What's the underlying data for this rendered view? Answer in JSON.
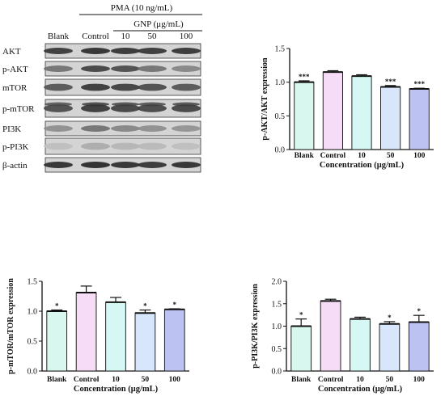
{
  "blot": {
    "treatment_label": "PMA (10 ng/mL)",
    "gnp_label": "GNP (μg/mL)",
    "lane_labels": [
      "Blank",
      "Control",
      "10",
      "50",
      "100"
    ],
    "proteins": [
      "AKT",
      "p-AKT",
      "mTOR",
      "p-mTOR",
      "PI3K",
      "p-PI3K",
      "β-actin"
    ],
    "band_intensity": [
      [
        0.85,
        0.9,
        0.88,
        0.86,
        0.87
      ],
      [
        0.55,
        0.8,
        0.75,
        0.55,
        0.45
      ],
      [
        0.7,
        0.85,
        0.82,
        0.75,
        0.7
      ],
      [
        0.75,
        0.85,
        0.8,
        0.78,
        0.8
      ],
      [
        0.4,
        0.55,
        0.45,
        0.4,
        0.38
      ],
      [
        0.15,
        0.25,
        0.2,
        0.18,
        0.15
      ],
      [
        0.9,
        0.92,
        0.9,
        0.88,
        0.9
      ]
    ]
  },
  "chart_data": [
    {
      "type": "bar",
      "categories": [
        "Blank",
        "Control",
        "10",
        "50",
        "100"
      ],
      "values": [
        1.0,
        1.15,
        1.09,
        0.93,
        0.9
      ],
      "errors": [
        0.02,
        0.02,
        0.02,
        0.02,
        0.01
      ],
      "significance": [
        "***",
        "",
        "",
        "***",
        "***"
      ],
      "colors": [
        "#d8f7ee",
        "#f6dcf6",
        "#d5f8f4",
        "#d7e6fb",
        "#bcc3f3"
      ],
      "xlabel": "Concentration (μg/mL)",
      "ylabel": "p-AKT/AKT expression",
      "ylim": [
        0,
        1.5
      ],
      "yticks": [
        "0.0",
        "0.5",
        "1.0",
        "1.5"
      ]
    },
    {
      "type": "bar",
      "categories": [
        "Blank",
        "Control",
        "10",
        "50",
        "100"
      ],
      "values": [
        1.0,
        1.31,
        1.15,
        0.97,
        1.03
      ],
      "errors": [
        0.02,
        0.11,
        0.08,
        0.05,
        0.01
      ],
      "significance": [
        "*",
        "",
        "",
        "*",
        "*"
      ],
      "colors": [
        "#d8f7ee",
        "#f6dcf6",
        "#d5f8f4",
        "#d7e6fb",
        "#bcc3f3"
      ],
      "xlabel": "Concentration (μg/mL)",
      "ylabel": "p-mTOR/mTOR expression",
      "ylim": [
        0,
        1.5
      ],
      "yticks": [
        "0.0",
        "0.5",
        "1.0",
        "1.5"
      ]
    },
    {
      "type": "bar",
      "categories": [
        "Blank",
        "Control",
        "10",
        "50",
        "100"
      ],
      "values": [
        1.0,
        1.56,
        1.16,
        1.05,
        1.09
      ],
      "errors": [
        0.16,
        0.04,
        0.04,
        0.05,
        0.15
      ],
      "significance": [
        "*",
        "",
        "",
        "*",
        "*"
      ],
      "colors": [
        "#d8f7ee",
        "#f6dcf6",
        "#d5f8f4",
        "#d7e6fb",
        "#bcc3f3"
      ],
      "xlabel": "Concentration (μg/mL)",
      "ylabel": "p-PI3K/PI3K expression",
      "ylim": [
        0,
        2.0
      ],
      "yticks": [
        "0.0",
        "0.5",
        "1.0",
        "1.5",
        "2.0"
      ]
    }
  ]
}
